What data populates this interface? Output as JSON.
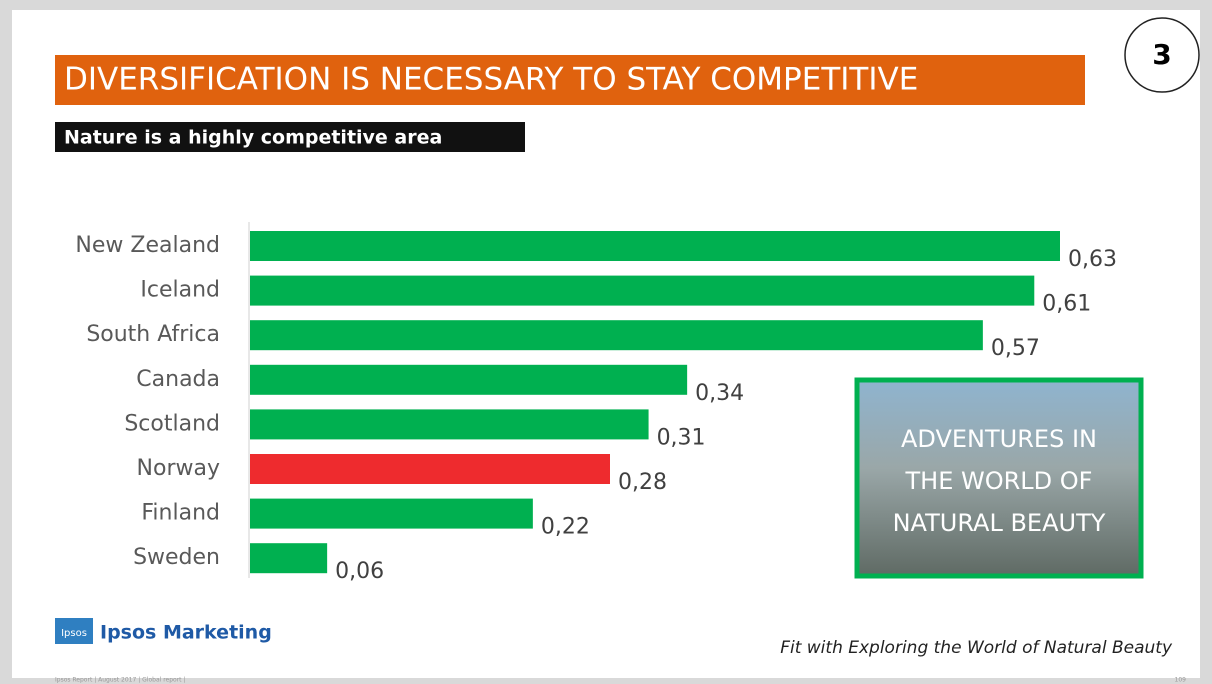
{
  "slide": {
    "title": "DIVERSIFICATION IS NECESSARY TO STAY COMPETITIVE",
    "subtitle": "Nature is a highly competitive area",
    "number": "3",
    "image_caption": [
      "ADVENTURES IN",
      "THE WORLD OF",
      "NATURAL BEAUTY"
    ],
    "logo_mark": "Ipsos",
    "logo_text": "Ipsos Marketing",
    "note": "Fit with Exploring the World of Natural Beauty",
    "footer": "Ipsos Report | August 2017 | Global report |",
    "page": "109"
  },
  "chart_data": {
    "type": "hbar",
    "categories": [
      "New Zealand",
      "Iceland",
      "South Africa",
      "Canada",
      "Scotland",
      "Norway",
      "Finland",
      "Sweden"
    ],
    "values": [
      0.63,
      0.61,
      0.57,
      0.34,
      0.31,
      0.28,
      0.22,
      0.06
    ],
    "value_labels": [
      "0,63",
      "0,61",
      "0,57",
      "0,34",
      "0,31",
      "0,28",
      "0,22",
      "0,06"
    ],
    "colors": [
      "#00b050",
      "#00b050",
      "#00b050",
      "#00b050",
      "#00b050",
      "#ee2b2e",
      "#00b050",
      "#00b050"
    ],
    "xlim": [
      0,
      0.7
    ]
  }
}
